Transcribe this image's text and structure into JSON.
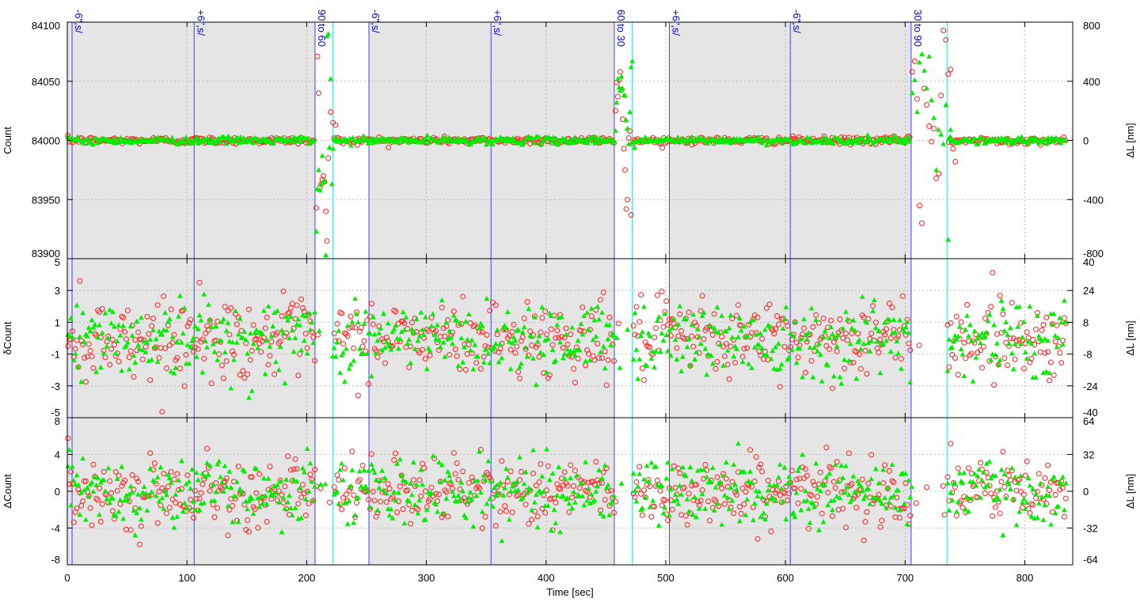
{
  "chart_data": {
    "type": "scatter",
    "x_axis": {
      "label": "Time [sec]",
      "range": [
        0,
        840
      ],
      "ticks": [
        "0",
        "100",
        "200",
        "300",
        "400",
        "500",
        "600",
        "700",
        "800"
      ],
      "tick_values": [
        0,
        100,
        200,
        300,
        400,
        500,
        600,
        700,
        800
      ]
    },
    "grid": true,
    "colors": {
      "series_a": "#ff2020",
      "series_b": "#00ee00",
      "shade": "#e5e5e5",
      "segment_line": "#4040ff",
      "transition_line": "#33dddd",
      "label": "#0000cc"
    },
    "shaded_intervals": [
      [
        0,
        207
      ],
      [
        252,
        457
      ],
      [
        503,
        705
      ]
    ],
    "segment_markers": [
      {
        "x": 4,
        "label": "-6\",s/"
      },
      {
        "x": 106,
        "label": "+6\",s/"
      },
      {
        "x": 207,
        "label": "90 to 60"
      },
      {
        "x": 252,
        "label": "-6\",s/"
      },
      {
        "x": 354,
        "label": "+6\",s/"
      },
      {
        "x": 457,
        "label": "60 to 30"
      },
      {
        "x": 503,
        "label": "+6\",s/"
      },
      {
        "x": 604,
        "label": "-6\",s/"
      },
      {
        "x": 705,
        "label": "30 to 90"
      }
    ],
    "transition_ends": [
      222,
      472,
      735
    ],
    "panels": [
      {
        "id": "top",
        "ylabel_left": "Count",
        "ylabel_right": "ΔL [nm]",
        "ylim": [
          83900,
          84100
        ],
        "left_ticks": [
          "84100",
          "84050",
          "84000",
          "83950",
          "83900"
        ],
        "left_tick_values": [
          84100,
          84050,
          84000,
          83950,
          83900
        ],
        "right_ticks": [
          "800",
          "400",
          "0",
          "-400",
          "-800"
        ],
        "right_tick_values": [
          800,
          400,
          0,
          -400,
          -800
        ],
        "series": [
          {
            "marker": "open-circle",
            "stable_level": 84000,
            "stable_spread": 1.5,
            "transitions": [
              {
                "x": [
                  208,
                  209,
                  210,
                  211,
                  212,
                  213,
                  214,
                  215,
                  216,
                  217,
                  218,
                  220,
                  222,
                  224
                ],
                "y": [
                  83943,
                  84071,
                  84040,
                  83960,
                  83963,
                  83967,
                  83970,
                  83965,
                  83940,
                  83915,
                  83985,
                  84024,
                  84015,
                  84013
                ]
              },
              {
                "x": [
                  458,
                  459,
                  460,
                  461,
                  462,
                  463,
                  464,
                  465,
                  466,
                  467,
                  468,
                  469,
                  470,
                  471
                ],
                "y": [
                  84025,
                  84049,
                  84037,
                  84051,
                  84058,
                  84043,
                  84018,
                  83993,
                  83975,
                  83942,
                  83950,
                  84002,
                  84008,
                  83937
                ]
              },
              {
                "x": [
                  706,
                  708,
                  710,
                  712,
                  714,
                  716,
                  718,
                  720,
                  722,
                  724,
                  726,
                  728,
                  730,
                  732,
                  734,
                  736,
                  738,
                  740,
                  742
                ],
                "y": [
                  84058,
                  84067,
                  84035,
                  83945,
                  83930,
                  84044,
                  84030,
                  84012,
                  83999,
                  84010,
                  83968,
                  83972,
                  84038,
                  84093,
                  84085,
                  84056,
                  84060,
                  83993,
                  83982
                ]
              }
            ]
          },
          {
            "marker": "filled-triangle",
            "stable_level": 84000,
            "stable_spread": 1.5,
            "transitions": [
              {
                "x": [
                  208,
                  209,
                  210,
                  211,
                  212,
                  213,
                  214,
                  215,
                  216,
                  217,
                  218,
                  219,
                  220,
                  221,
                  222,
                  224
                ],
                "y": [
                  83923,
                  83959,
                  83975,
                  83958,
                  83963,
                  83987,
                  83965,
                  83966,
                  83903,
                  84088,
                  84090,
                  83994,
                  84052,
                  83963,
                  83993,
                  84000
                ]
              },
              {
                "x": [
                  458,
                  459,
                  460,
                  461,
                  462,
                  463,
                  464,
                  465,
                  466,
                  467,
                  468,
                  469,
                  470,
                  471,
                  472,
                  474
                ],
                "y": [
                  84008,
                  84032,
                  84052,
                  84045,
                  84042,
                  84054,
                  84044,
                  84038,
                  84038,
                  84017,
                  84010,
                  83997,
                  84024,
                  84062,
                  84067,
                  83994
                ]
              },
              {
                "x": [
                  706,
                  708,
                  710,
                  712,
                  714,
                  716,
                  718,
                  720,
                  722,
                  724,
                  726,
                  728,
                  730,
                  732,
                  734,
                  736,
                  738
                ],
                "y": [
                  84040,
                  84051,
                  84024,
                  84066,
                  84073,
                  84059,
                  84044,
                  84071,
                  84034,
                  84019,
                  83975,
                  84009,
                  84005,
                  83997,
                  84030,
                  83916,
                  84009
                ]
              }
            ]
          }
        ]
      },
      {
        "id": "middle",
        "ylabel_left": "δCount",
        "ylabel_right": "ΔL [nm]",
        "ylim": [
          -5,
          5
        ],
        "left_ticks": [
          "5",
          "3",
          "1",
          "-1",
          "-3",
          "-5"
        ],
        "left_tick_values": [
          5,
          3,
          1,
          -1,
          -3,
          -5
        ],
        "right_ticks": [
          "40",
          "24",
          "8",
          "-8",
          "-24",
          "-40"
        ],
        "right_tick_values": [
          40,
          24,
          8,
          -8,
          -24,
          -40
        ],
        "series": [
          {
            "marker": "open-circle",
            "noise_std": 1.6
          },
          {
            "marker": "filled-triangle",
            "noise_std": 1.6
          }
        ]
      },
      {
        "id": "bottom",
        "ylabel_left": "ΔCount",
        "ylabel_right": "ΔL [nm]",
        "ylim": [
          -8,
          8
        ],
        "left_ticks": [
          "8",
          "4",
          "0",
          "-4",
          "-8"
        ],
        "left_tick_values": [
          8,
          4,
          0,
          -4,
          -8
        ],
        "right_ticks": [
          "64",
          "32",
          "0",
          "-32",
          "-64"
        ],
        "right_tick_values": [
          64,
          32,
          0,
          -32,
          -64
        ],
        "series": [
          {
            "marker": "open-circle",
            "noise_std": 2.4
          },
          {
            "marker": "filled-triangle",
            "noise_std": 2.4
          }
        ]
      }
    ]
  }
}
